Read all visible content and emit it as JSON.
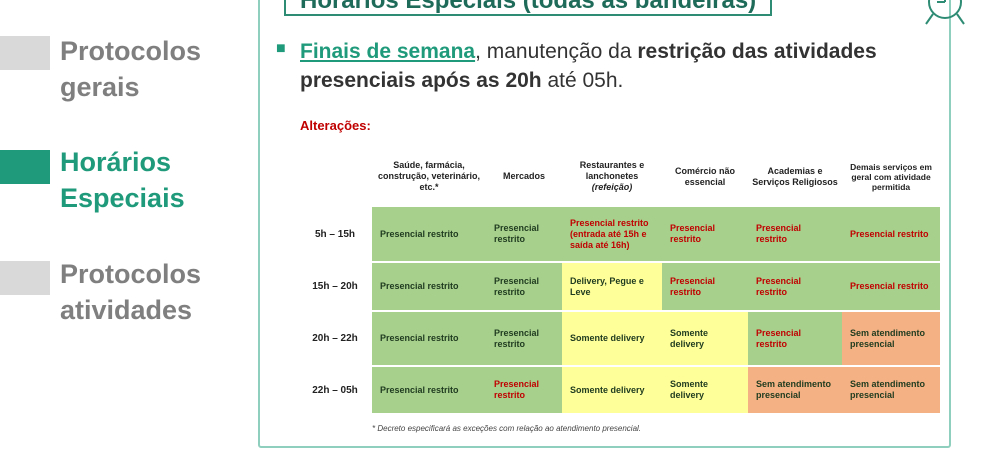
{
  "nav": {
    "items": [
      {
        "label": "Protocolos gerais",
        "line1": "Protocolos",
        "line2": "gerais",
        "active": false
      },
      {
        "label": "Horários Especiais",
        "line1": "Horários",
        "line2": "Especiais",
        "active": true
      },
      {
        "label": "Protocolos atividades",
        "line1": "Protocolos",
        "line2": "atividades",
        "active": false
      }
    ]
  },
  "panel": {
    "title": "Horários Especiais (todas as bandeiras)",
    "headline": {
      "link": "Finais de semana",
      "t1": ", manutenção da ",
      "bold": "restrição das atividades presenciais após as 20h",
      "t2": " até 05h."
    },
    "alteracoes_label": "Alterações:",
    "icon": "clock-icon"
  },
  "table": {
    "columns": [
      "Saúde, farmácia, construção, veterinário, etc.*",
      "Mercados",
      "Restaurantes e lanchonetes",
      "Comércio não essencial",
      "Academias e Serviços Religiosos",
      "Demais serviços em geral com atividade permitida"
    ],
    "col3_sub": "(refeição)",
    "rows": [
      {
        "time": "5h – 15h",
        "cells": [
          "Presencial restrito",
          "Presencial restrito",
          "Presencial restrito (entrada até 15h e saída até 16h)",
          "Presencial restrito",
          "Presencial restrito",
          "Presencial restrito"
        ]
      },
      {
        "time": "15h – 20h",
        "cells": [
          "Presencial restrito",
          "Presencial restrito",
          "Delivery, Pegue e Leve",
          "Presencial restrito",
          "Presencial restrito",
          "Presencial restrito"
        ]
      },
      {
        "time": "20h – 22h",
        "cells": [
          "Presencial restrito",
          "Presencial restrito",
          "Somente delivery",
          "Somente delivery",
          "Presencial restrito",
          "Sem atendimento presencial"
        ]
      },
      {
        "time": "22h – 05h",
        "cells": [
          "Presencial restrito",
          "Presencial restrito",
          "Somente delivery",
          "Somente delivery",
          "Sem atendimento presencial",
          "Sem atendimento presencial"
        ]
      }
    ]
  },
  "footnote": "* Decreto especificará as exceções com relação ao atendimento presencial.",
  "colors": {
    "brand_green": "#1f9a7a",
    "cell_green": "#a8d08d",
    "cell_yellow": "#ffff99",
    "cell_salmon": "#f4b183",
    "text_red": "#c00000"
  }
}
